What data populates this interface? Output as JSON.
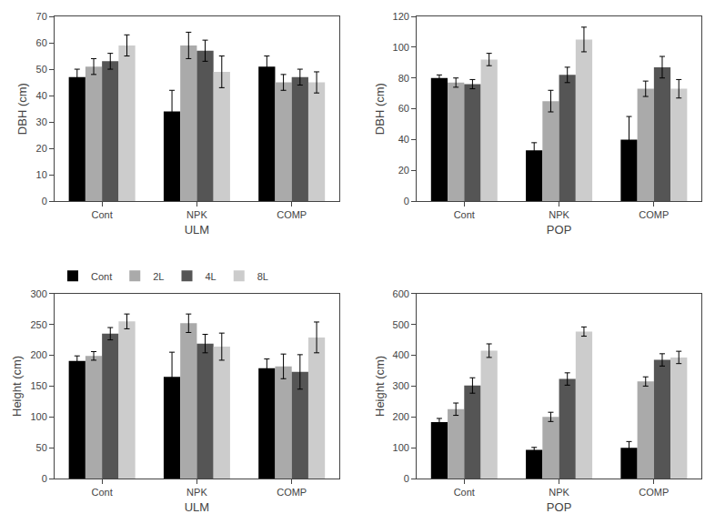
{
  "chart_data": [
    {
      "type": "bar",
      "xlabel": "ULM",
      "ylabel": "DBH (cm)",
      "categories": [
        "Cont",
        "NPK",
        "COMP"
      ],
      "series": [
        {
          "color": "#000000",
          "values": [
            47,
            34,
            51
          ],
          "errors": [
            3,
            8,
            4
          ]
        },
        {
          "color": "#aaaaaa",
          "values": [
            51,
            59,
            45
          ],
          "errors": [
            3,
            5,
            3
          ]
        },
        {
          "color": "#555555",
          "values": [
            53,
            57,
            47
          ],
          "errors": [
            3,
            4,
            3
          ]
        },
        {
          "color": "#cccccc",
          "values": [
            59,
            49,
            45
          ],
          "errors": [
            4,
            6,
            4
          ]
        }
      ],
      "ylim": [
        0,
        70
      ],
      "yticks": [
        0,
        10,
        20,
        30,
        40,
        50,
        60,
        70
      ],
      "grid": false
    },
    {
      "type": "bar",
      "xlabel": "POP",
      "ylabel": "DBH (cm)",
      "categories": [
        "Cont",
        "NPK",
        "COMP"
      ],
      "series": [
        {
          "color": "#000000",
          "values": [
            80,
            33,
            40
          ],
          "errors": [
            2,
            5,
            15
          ]
        },
        {
          "color": "#aaaaaa",
          "values": [
            77,
            65,
            73
          ],
          "errors": [
            3,
            7,
            5
          ]
        },
        {
          "color": "#555555",
          "values": [
            76,
            82,
            87
          ],
          "errors": [
            3,
            5,
            7
          ]
        },
        {
          "color": "#cccccc",
          "values": [
            92,
            105,
            73
          ],
          "errors": [
            4,
            8,
            6
          ]
        }
      ],
      "ylim": [
        0,
        120
      ],
      "yticks": [
        0,
        20,
        40,
        60,
        80,
        100,
        120
      ],
      "grid": false
    },
    {
      "type": "bar",
      "xlabel": "ULM",
      "ylabel": "Height (cm)",
      "categories": [
        "Cont",
        "NPK",
        "COMP"
      ],
      "series": [
        {
          "name": "Cont",
          "color": "#000000",
          "values": [
            191,
            165,
            179
          ],
          "errors": [
            8,
            40,
            15
          ]
        },
        {
          "name": "2L",
          "color": "#aaaaaa",
          "values": [
            199,
            252,
            182
          ],
          "errors": [
            7,
            15,
            20
          ]
        },
        {
          "name": "4L",
          "color": "#555555",
          "values": [
            235,
            219,
            173
          ],
          "errors": [
            10,
            15,
            28
          ]
        },
        {
          "name": "8L",
          "color": "#cccccc",
          "values": [
            255,
            214,
            229
          ],
          "errors": [
            12,
            22,
            25
          ]
        }
      ],
      "ylim": [
        0,
        300
      ],
      "yticks": [
        0,
        50,
        100,
        150,
        200,
        250,
        300
      ],
      "grid": false,
      "legend": "upper left"
    },
    {
      "type": "bar",
      "xlabel": "POP",
      "ylabel": "Height (cm)",
      "categories": [
        "Cont",
        "NPK",
        "COMP"
      ],
      "series": [
        {
          "color": "#000000",
          "values": [
            183,
            93,
            100
          ],
          "errors": [
            12,
            8,
            20
          ]
        },
        {
          "color": "#aaaaaa",
          "values": [
            225,
            200,
            315
          ],
          "errors": [
            20,
            15,
            15
          ]
        },
        {
          "color": "#555555",
          "values": [
            302,
            323,
            385
          ],
          "errors": [
            25,
            20,
            20
          ]
        },
        {
          "color": "#cccccc",
          "values": [
            415,
            477,
            393
          ],
          "errors": [
            22,
            15,
            20
          ]
        }
      ],
      "ylim": [
        0,
        600
      ],
      "yticks": [
        0,
        100,
        200,
        300,
        400,
        500,
        600
      ],
      "grid": false
    }
  ]
}
